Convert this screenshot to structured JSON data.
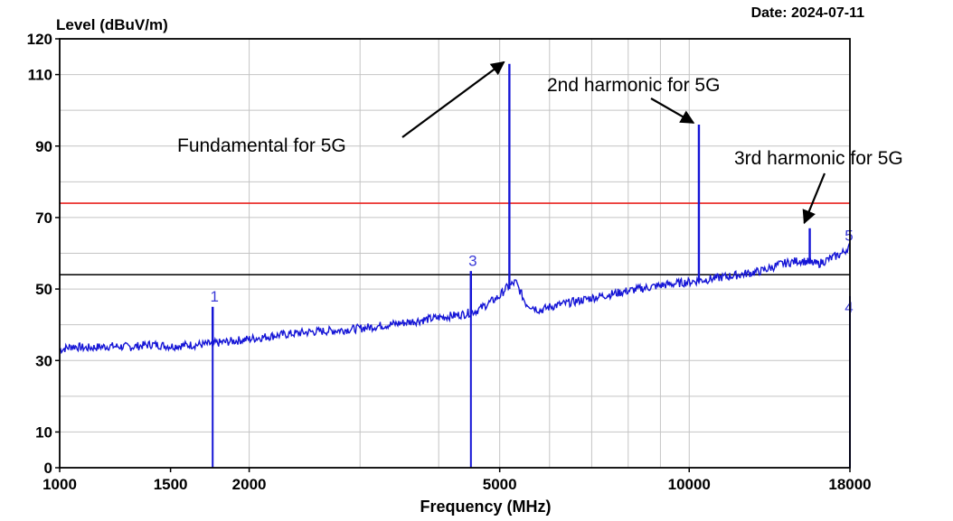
{
  "header": {
    "date": "Date: 2024-07-11"
  },
  "chart_data": {
    "type": "line",
    "title": "",
    "ylabel": "Level (dBuV/m)",
    "xlabel": "Frequency (MHz)",
    "xscale": "log",
    "xlim": [
      1000,
      18000
    ],
    "ylim": [
      0,
      120
    ],
    "grid": true,
    "x_ticks": [
      1000,
      1500,
      2000,
      5000,
      10000,
      18000
    ],
    "x_tick_labels": [
      "1000",
      "1500",
      "2000",
      "5000",
      "10000",
      "18000"
    ],
    "y_ticks": [
      0,
      10,
      30,
      50,
      70,
      90,
      110,
      120
    ],
    "y_tick_labels": [
      "0",
      "10",
      "30",
      "50",
      "70",
      "90",
      "110",
      "120"
    ],
    "limit_lines": [
      {
        "level": 74,
        "color": "#e8231f"
      },
      {
        "level": 54,
        "color": "#000000"
      }
    ],
    "series": [
      {
        "color": "#1515d6",
        "points": [
          [
            1000,
            33
          ],
          [
            1050,
            34
          ],
          [
            1100,
            33.5
          ],
          [
            1200,
            34
          ],
          [
            1300,
            33.8
          ],
          [
            1400,
            34.5
          ],
          [
            1500,
            34
          ],
          [
            1600,
            34.3
          ],
          [
            1700,
            34.5
          ],
          [
            1800,
            35
          ],
          [
            1900,
            35.5
          ],
          [
            2000,
            36
          ],
          [
            2200,
            37
          ],
          [
            2500,
            38
          ],
          [
            2800,
            38.5
          ],
          [
            3000,
            39
          ],
          [
            3500,
            40.5
          ],
          [
            4000,
            42
          ],
          [
            4400,
            43
          ],
          [
            4600,
            44
          ],
          [
            4800,
            46
          ],
          [
            5000,
            48
          ],
          [
            5100,
            50
          ],
          [
            5300,
            52
          ],
          [
            5500,
            46
          ],
          [
            5800,
            44
          ],
          [
            6000,
            45
          ],
          [
            7000,
            47.5
          ],
          [
            8000,
            49.5
          ],
          [
            9000,
            51
          ],
          [
            10000,
            52
          ],
          [
            11000,
            53
          ],
          [
            12000,
            54
          ],
          [
            13000,
            55
          ],
          [
            14000,
            57
          ],
          [
            15000,
            58
          ],
          [
            16000,
            57
          ],
          [
            17000,
            59
          ],
          [
            17500,
            60
          ],
          [
            18000,
            62
          ]
        ]
      }
    ],
    "spikes": [
      {
        "x": 1750,
        "top": 45,
        "bottom": 34
      },
      {
        "x": 4500,
        "top": 55,
        "bottom": 43
      },
      {
        "x": 5180,
        "top": 113,
        "bottom": 50
      },
      {
        "x": 10360,
        "top": 96,
        "bottom": 52
      },
      {
        "x": 15540,
        "top": 67,
        "bottom": 57
      }
    ],
    "markers": [
      {
        "label": "1",
        "x": 1750,
        "y": 45,
        "line_to": 0
      },
      {
        "label": "3",
        "x": 4500,
        "y": 55,
        "line_to": 0
      },
      {
        "label": "5",
        "x": 18000,
        "y": 62,
        "line_to": null
      },
      {
        "label": "4",
        "x": 18000,
        "y": 48,
        "line_to": 0
      }
    ],
    "annotations": [
      {
        "text": "Fundamental for 5G",
        "arrow_to": [
          5180,
          114
        ]
      },
      {
        "text": "2nd harmonic for 5G",
        "arrow_to": [
          10360,
          97
        ]
      },
      {
        "text": "3rd harmonic for 5G",
        "arrow_to": [
          15540,
          69
        ]
      }
    ]
  }
}
